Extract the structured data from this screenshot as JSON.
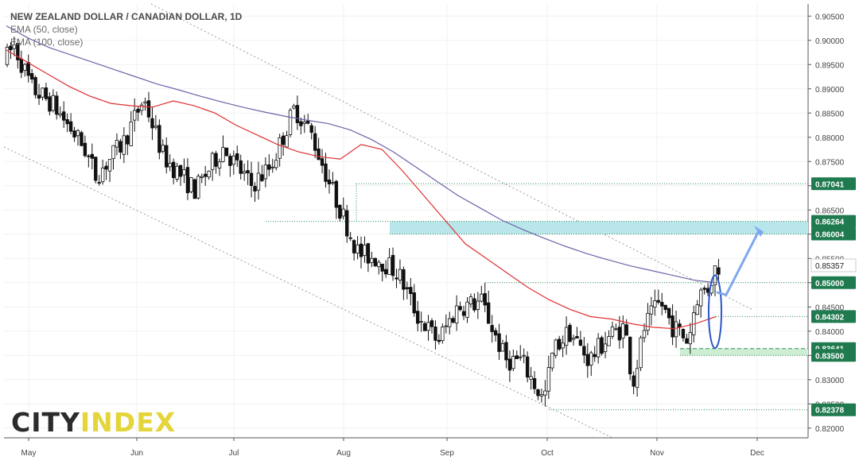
{
  "title": "NEW ZEALAND DOLLAR / CANADIAN DOLLAR, 1D",
  "indicators": [
    "EMA (50, close)",
    "EMA (100, close)"
  ],
  "logo": {
    "part1": "CITY",
    "part2": "INDEX"
  },
  "colors": {
    "up_candle": "#ffffff",
    "down_candle": "#111111",
    "ema50": "#e03030",
    "ema100": "#6d63a8",
    "badge_bg": "#1f7a4f",
    "zone_fill": "#b8e6ea",
    "zone_fill_low": "#cdeed2",
    "level_line": "#2f8f5b",
    "channel_line": "#9a9a9a",
    "forecast": "#7ea7f0",
    "highlight": "#2a56c6"
  },
  "chart_data": {
    "type": "candlestick",
    "x_labels": [
      "May",
      "Jun",
      "Jul",
      "Aug",
      "Sep",
      "Oct",
      "Nov",
      "Dec"
    ],
    "ylim": [
      0.818,
      0.9075
    ],
    "y_ticks": [
      "0.82000",
      "0.82500",
      "0.83000",
      "0.83500",
      "0.84000",
      "0.84500",
      "0.85000",
      "0.85500",
      "0.86000",
      "0.86500",
      "0.87000",
      "0.87500",
      "0.88000",
      "0.88500",
      "0.89000",
      "0.89500",
      "0.90000",
      "0.90500"
    ],
    "levels": [
      {
        "label": "0.87041",
        "value": 0.87041
      },
      {
        "label": "0.86264",
        "value": 0.86264
      },
      {
        "label": "0.86004",
        "value": 0.86004
      },
      {
        "label": "0.85000",
        "value": 0.85
      },
      {
        "label": "0.84302",
        "value": 0.84302
      },
      {
        "label": "0.83641",
        "value": 0.83641
      },
      {
        "label": "0.83500",
        "value": 0.835
      },
      {
        "label": "0.82378",
        "value": 0.82378
      }
    ],
    "current_price": {
      "label": "0.85357",
      "value": 0.85357
    },
    "zones": [
      {
        "from": 0.86004,
        "to": 0.86264
      },
      {
        "from": 0.835,
        "to": 0.83641
      }
    ],
    "series": [
      {
        "name": "EMA (50, close)",
        "values": [
          0.898,
          0.8955,
          0.893,
          0.8905,
          0.8885,
          0.887,
          0.8865,
          0.8862,
          0.8875,
          0.8865,
          0.885,
          0.8825,
          0.8805,
          0.8785,
          0.877,
          0.876,
          0.8755,
          0.8785,
          0.8775,
          0.873,
          0.868,
          0.863,
          0.858,
          0.855,
          0.852,
          0.849,
          0.8465,
          0.8445,
          0.843,
          0.8425,
          0.8415,
          0.8408,
          0.8405,
          0.8415,
          0.843
        ]
      },
      {
        "name": "EMA (100, close)",
        "values": [
          0.903,
          0.9005,
          0.8985,
          0.897,
          0.8955,
          0.894,
          0.8925,
          0.891,
          0.8898,
          0.8885,
          0.8873,
          0.8862,
          0.8852,
          0.8843,
          0.8835,
          0.8828,
          0.8815,
          0.8795,
          0.877,
          0.874,
          0.871,
          0.868,
          0.8655,
          0.863,
          0.861,
          0.8592,
          0.8575,
          0.856,
          0.8547,
          0.8535,
          0.8525,
          0.8515,
          0.8505,
          0.85
        ]
      }
    ]
  }
}
